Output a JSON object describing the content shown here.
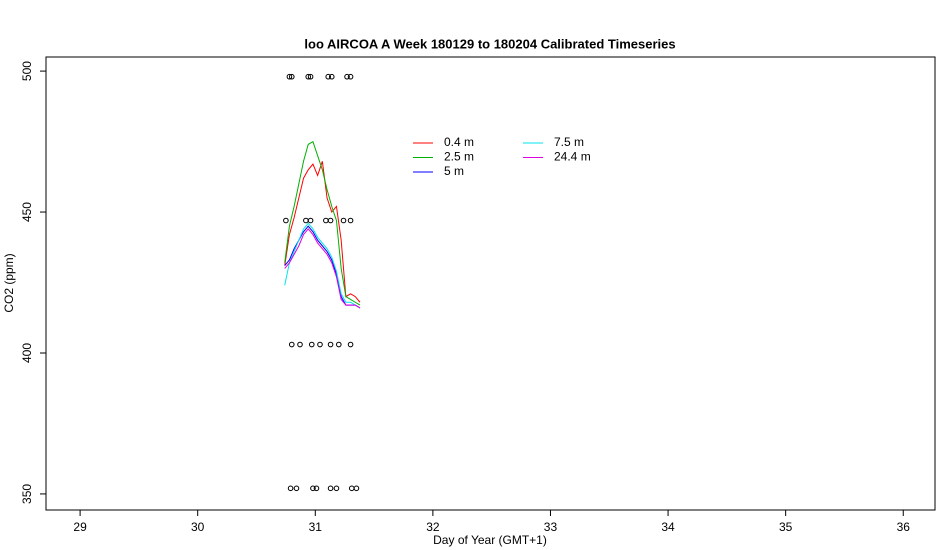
{
  "chart_data": {
    "type": "line",
    "title": "loo AIRCOA A  Week 180129 to 180204  Calibrated Timeseries",
    "x_label": "Day of Year (GMT+1)",
    "y_label": "CO2 (ppm)",
    "xlim": [
      28.71,
      36.27
    ],
    "ylim": [
      344.3,
      505
    ],
    "xticks": [
      29,
      30,
      31,
      32,
      33,
      34,
      35,
      36
    ],
    "yticks": [
      350,
      400,
      450,
      500
    ],
    "x": [
      30.74,
      30.78,
      30.82,
      30.86,
      30.9,
      30.94,
      30.98,
      31.02,
      31.06,
      31.1,
      31.14,
      31.18,
      31.22,
      31.26,
      31.3,
      31.34,
      31.38
    ],
    "series": [
      {
        "name": "0.4 m",
        "color": "#ff0000",
        "values": [
          431,
          442,
          448,
          455,
          462,
          465,
          467,
          463,
          468,
          455,
          450,
          452,
          440,
          420,
          421,
          420,
          418
        ]
      },
      {
        "name": "2.5 m",
        "color": "#00b000",
        "values": [
          432,
          445,
          452,
          460,
          468,
          474,
          475,
          470,
          465,
          458,
          452,
          447,
          430,
          420,
          419,
          418,
          417
        ]
      },
      {
        "name": "5 m",
        "color": "#0000ff",
        "values": [
          431,
          433,
          437,
          440,
          443,
          445,
          443,
          440,
          438,
          436,
          433,
          428,
          420,
          417,
          417,
          417,
          416
        ]
      },
      {
        "name": "7.5 m",
        "color": "#00e5ee",
        "values": [
          424,
          432,
          436,
          440,
          444,
          446,
          444,
          441,
          439,
          437,
          434,
          429,
          421,
          418,
          418,
          417,
          416
        ]
      },
      {
        "name": "24.4 m",
        "color": "#e000e0",
        "values": [
          430,
          432,
          435,
          438,
          442,
          444,
          442,
          439,
          437,
          435,
          432,
          427,
          419,
          417,
          417,
          417,
          416
        ]
      }
    ],
    "points": {
      "color": "#000000",
      "x": [
        30.78,
        30.8,
        30.94,
        30.96,
        31.11,
        31.14,
        31.27,
        31.3,
        30.75,
        30.92,
        30.96,
        31.09,
        31.13,
        31.24,
        31.3,
        30.8,
        30.87,
        30.97,
        31.04,
        31.13,
        31.2,
        31.3,
        30.79,
        30.84,
        30.98,
        31.01,
        31.13,
        31.18,
        31.31,
        31.35
      ],
      "y": [
        498,
        498,
        498,
        498,
        498,
        498,
        498,
        498,
        447,
        447,
        447,
        447,
        447,
        447,
        447,
        403,
        403,
        403,
        403,
        403,
        403,
        403,
        352,
        352,
        352,
        352,
        352,
        352,
        352,
        352
      ]
    },
    "legend_columns": 2
  }
}
